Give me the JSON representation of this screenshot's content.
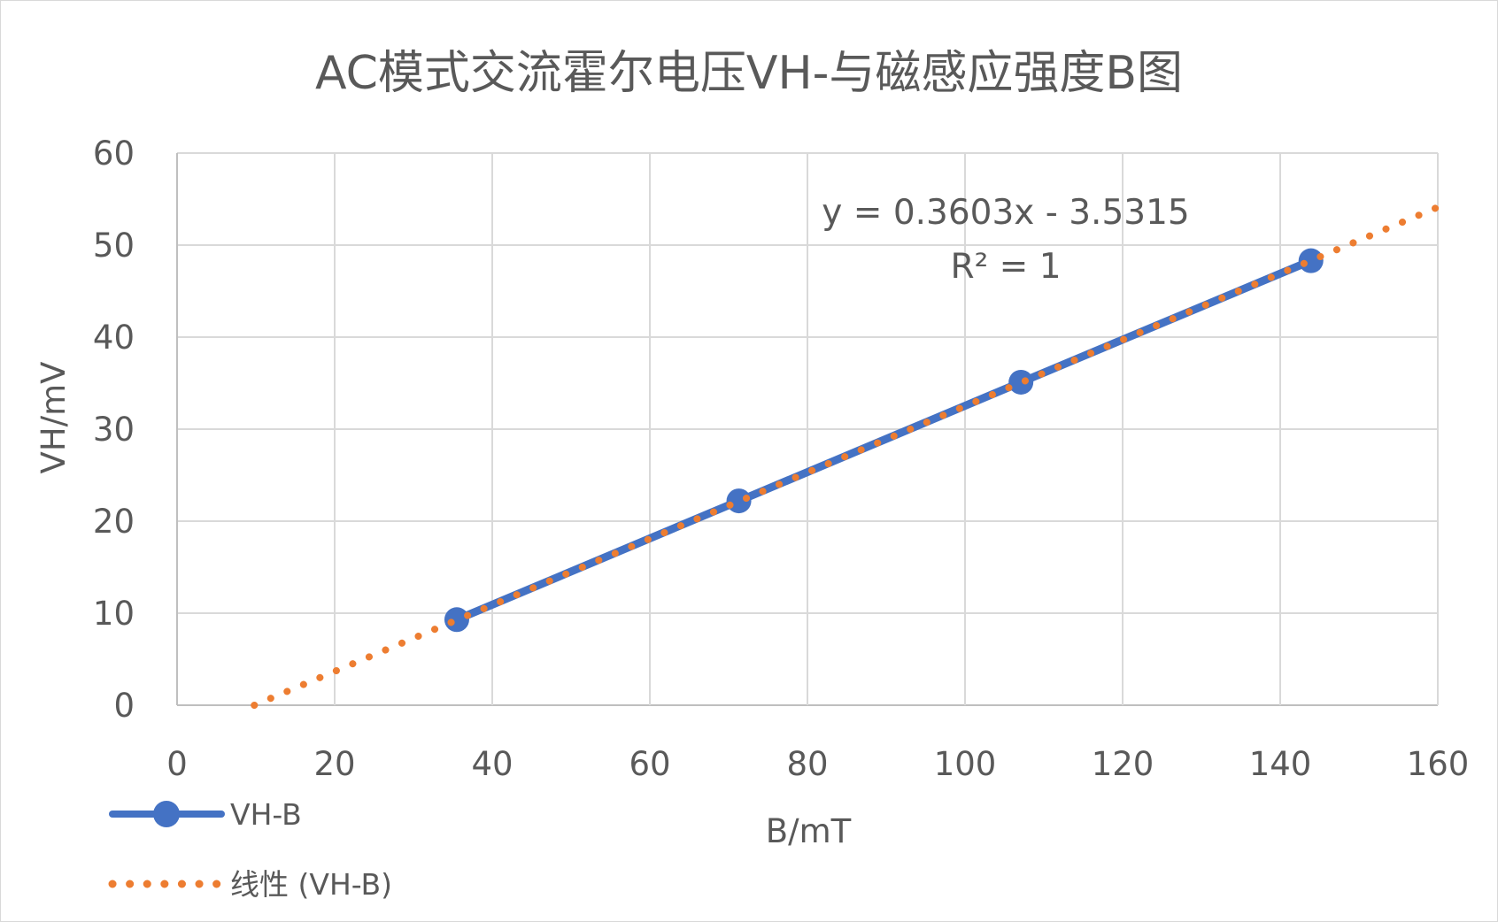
{
  "chart_data": {
    "type": "scatter",
    "title": "AC模式交流霍尔电压VH-与磁感应强度B图",
    "xlabel": "B/mT",
    "ylabel": "VH/mV",
    "xlim": [
      0,
      160
    ],
    "ylim": [
      0,
      60
    ],
    "xticks": [
      0,
      20,
      40,
      60,
      80,
      100,
      120,
      140,
      160
    ],
    "yticks": [
      0,
      10,
      20,
      30,
      40,
      50,
      60
    ],
    "grid": true,
    "legend_position": "bottom-left",
    "series": [
      {
        "name": "VH-B",
        "color": "#4472C4",
        "marker": "circle",
        "x": [
          35.5,
          71.3,
          107.1,
          143.9
        ],
        "y": [
          9.3,
          22.2,
          35.1,
          48.3
        ]
      }
    ],
    "trendline": {
      "name": "线性 (VH-B)",
      "type": "linear",
      "slope": 0.3603,
      "intercept": -3.5315,
      "x_range": [
        9.8,
        160
      ],
      "color": "#ED7D31",
      "style": "dotted",
      "equation_text": "y = 0.3603x - 3.5315",
      "r2_text": "R² = 1"
    }
  }
}
